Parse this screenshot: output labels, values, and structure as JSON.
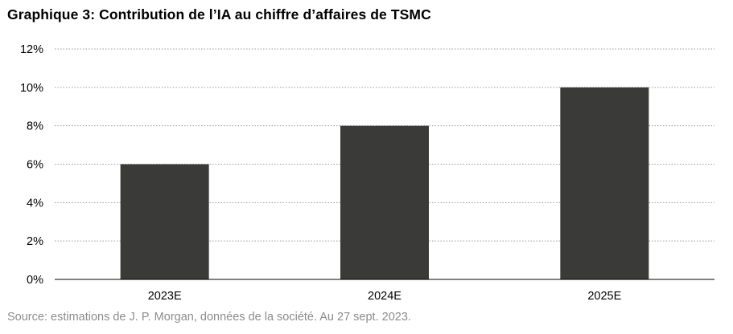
{
  "chart_data": {
    "type": "bar",
    "title": "Graphique 3: Contribution de l’IA au chiffre d’affaires de TSMC",
    "categories": [
      "2023E",
      "2024E",
      "2025E"
    ],
    "values": [
      6,
      8,
      10
    ],
    "unit": "%",
    "xlabel": "",
    "ylabel": "",
    "ylim": [
      0,
      12
    ],
    "yticks": [
      0,
      2,
      4,
      6,
      8,
      10,
      12
    ],
    "ytick_labels": [
      "0%",
      "2%",
      "4%",
      "6%",
      "8%",
      "10%",
      "12%"
    ],
    "grid": true,
    "legend": "none",
    "bar_color": "#3a3a38",
    "source": "Source: estimations de J. P. Morgan, données de la société. Au 27 sept. 2023."
  }
}
